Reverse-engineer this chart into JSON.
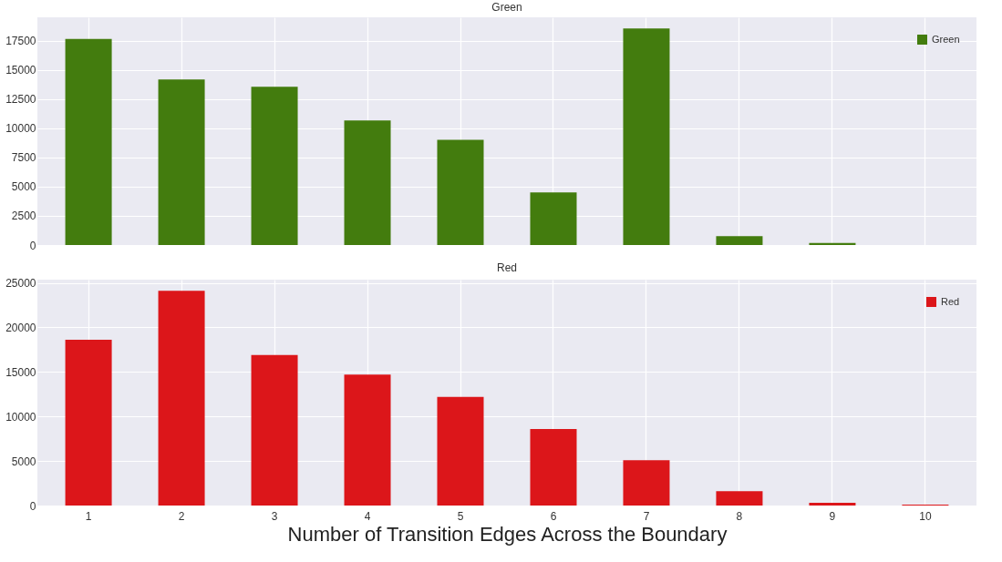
{
  "chart_data": [
    {
      "type": "bar",
      "title": "Green",
      "categories": [
        "1",
        "2",
        "3",
        "4",
        "5",
        "6",
        "7",
        "8",
        "9",
        "10"
      ],
      "series": [
        {
          "name": "Green",
          "color": "#437c0e",
          "values": [
            17650,
            14180,
            13560,
            10660,
            9000,
            4500,
            18540,
            760,
            170,
            0
          ]
        }
      ],
      "ylim": [
        0,
        19500
      ],
      "yticks": [
        0,
        2500,
        5000,
        7500,
        10000,
        12500,
        15000,
        17500
      ],
      "grid": true,
      "legend": "top right",
      "tick_labels": "y"
    },
    {
      "type": "bar",
      "title": "Red",
      "xlabel": "Number of Transition Edges Across the Boundary",
      "categories": [
        "1",
        "2",
        "3",
        "4",
        "5",
        "6",
        "7",
        "8",
        "9",
        "10"
      ],
      "series": [
        {
          "name": "Red",
          "color": "#dc161a",
          "values": [
            18600,
            24100,
            16900,
            14700,
            12200,
            8600,
            5100,
            1600,
            300,
            100
          ]
        }
      ],
      "ylim": [
        0,
        25360
      ],
      "yticks": [
        0,
        5000,
        10000,
        15000,
        20000,
        25000
      ],
      "grid": true,
      "legend": "top right"
    }
  ]
}
